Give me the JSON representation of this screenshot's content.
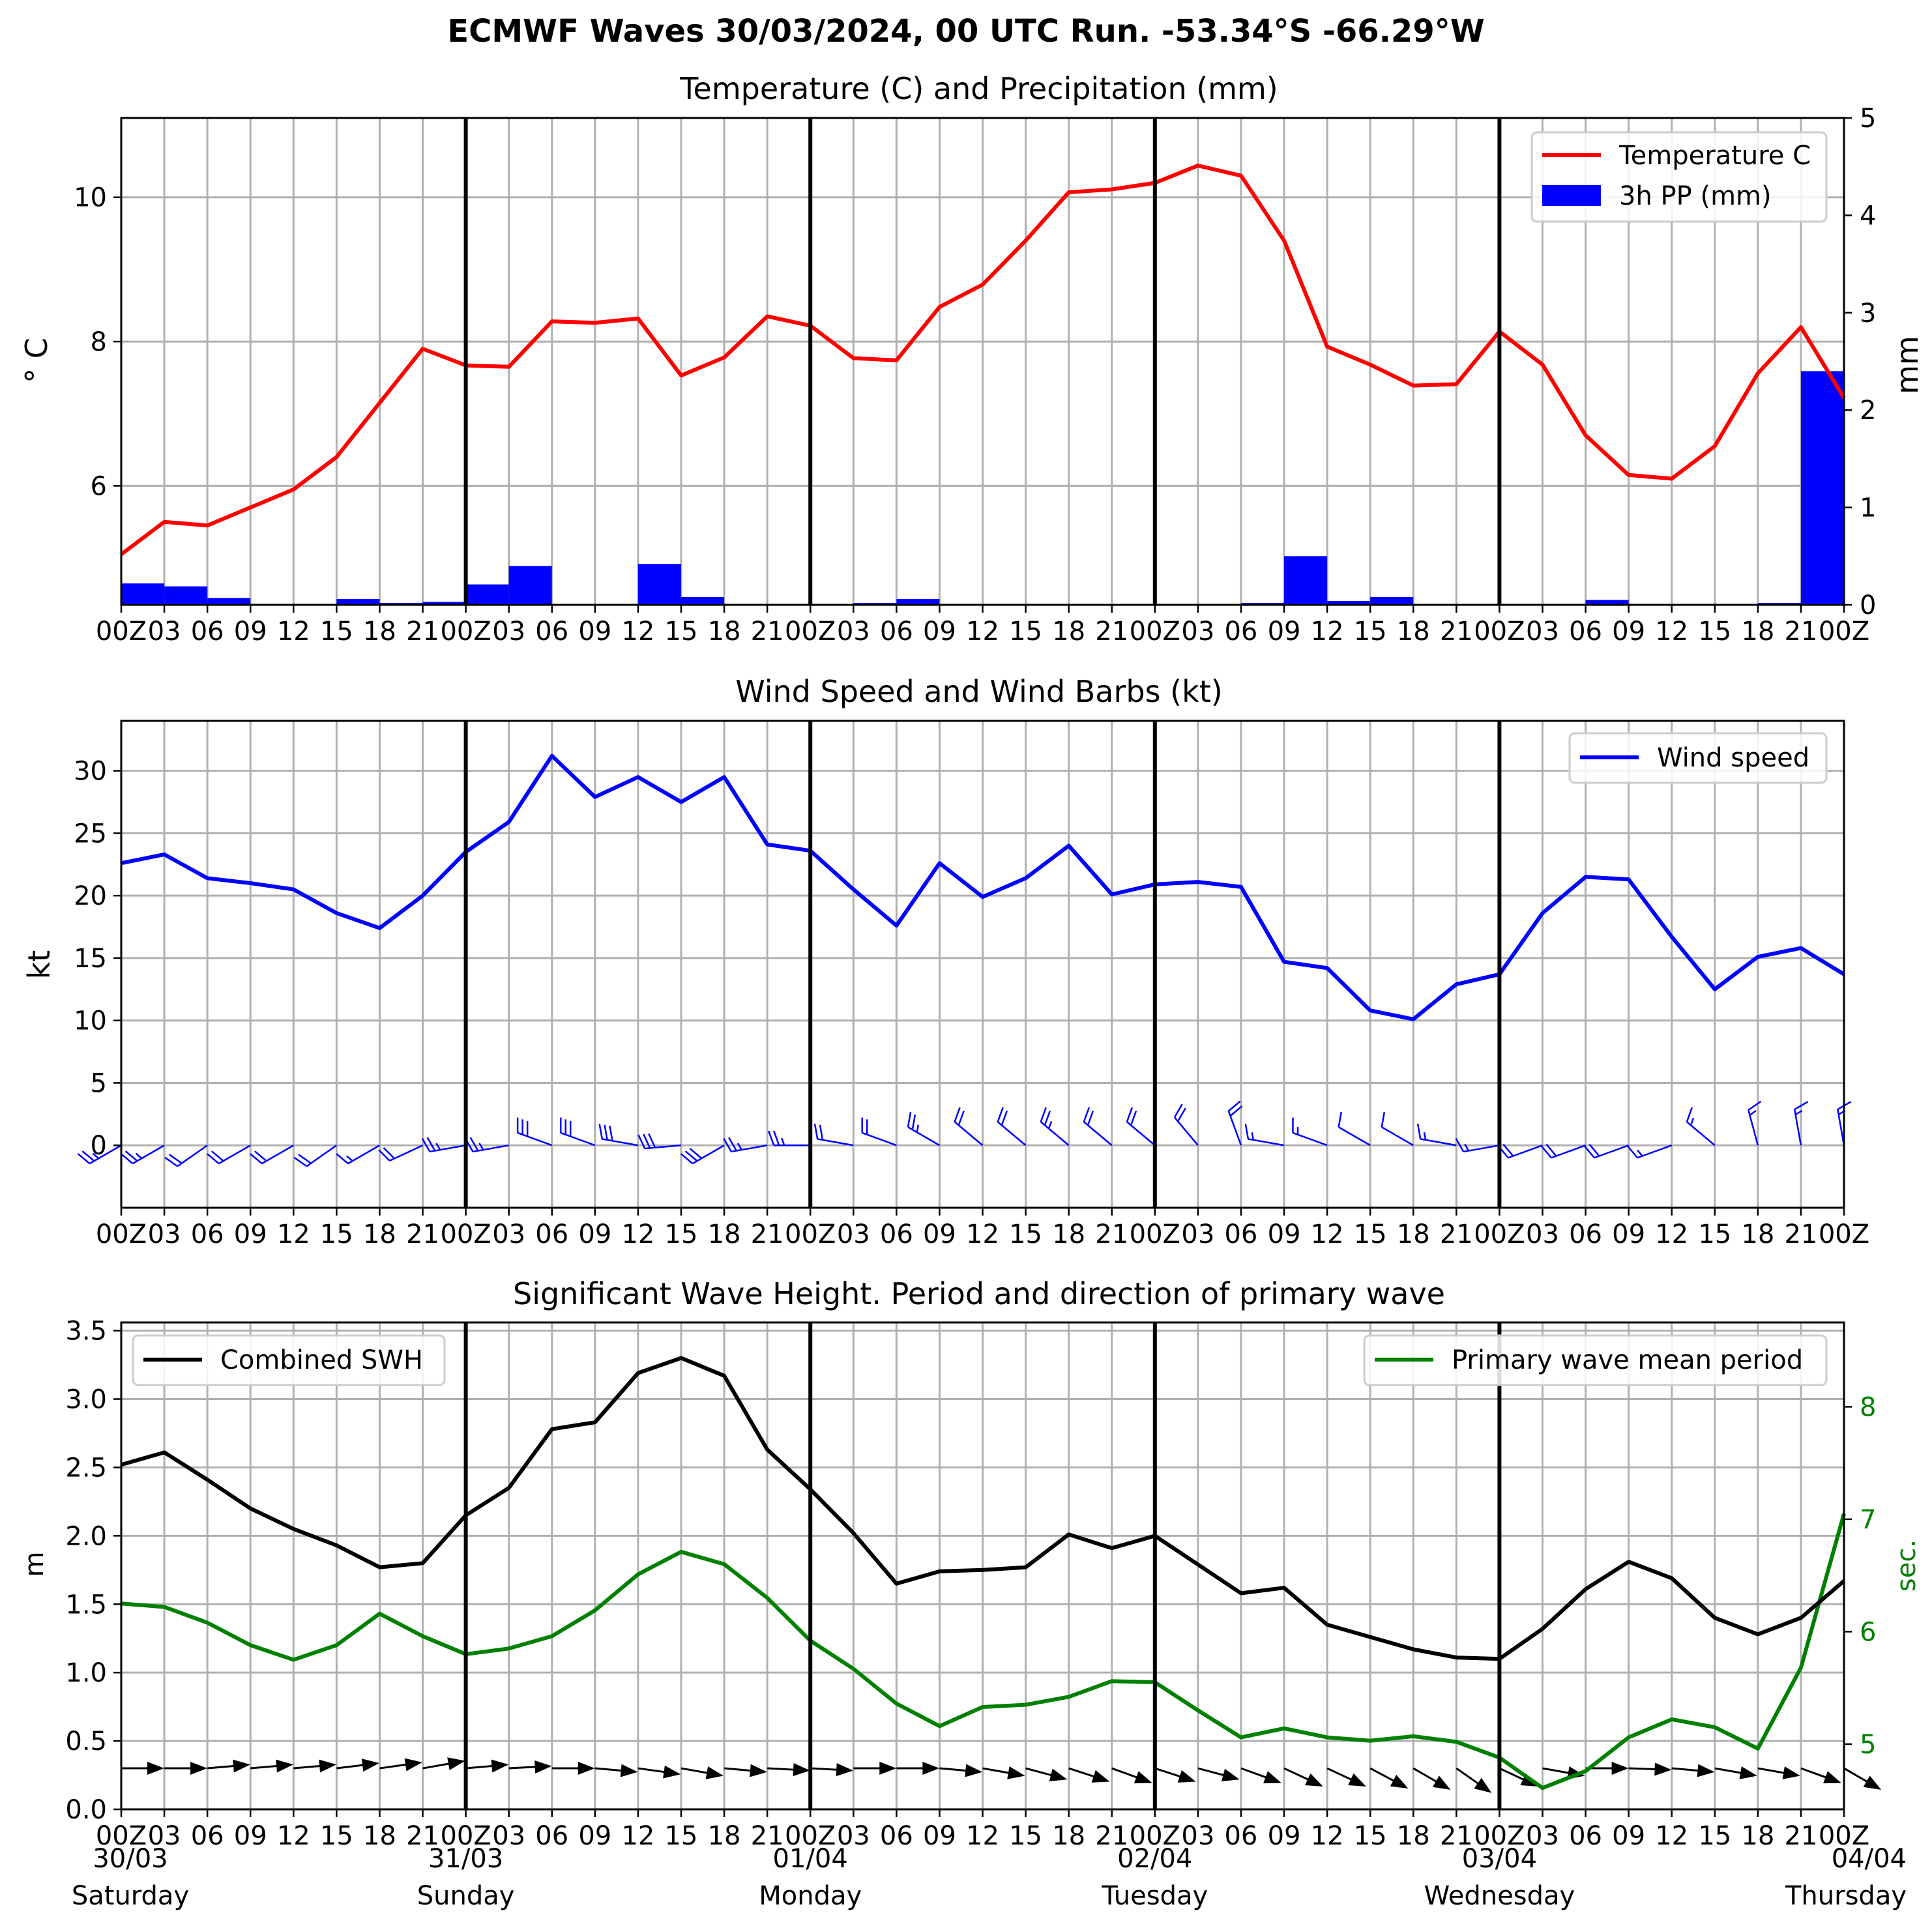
{
  "title": "ECMWF Waves 30/03/2024, 00 UTC Run. -53.34°S -66.29°W",
  "time_tick_labels": [
    "00Z",
    "03",
    "06",
    "09",
    "12",
    "15",
    "18",
    "21",
    "00Z",
    "03",
    "06",
    "09",
    "12",
    "15",
    "18",
    "21",
    "00Z",
    "03",
    "06",
    "09",
    "12",
    "15",
    "18",
    "21",
    "00Z",
    "03",
    "06",
    "09",
    "12",
    "15",
    "18",
    "21",
    "00Z",
    "03",
    "06",
    "09",
    "12",
    "15",
    "18",
    "21",
    "00Z"
  ],
  "date_labels": [
    "30/03",
    "31/03",
    "01/04",
    "02/04",
    "03/04",
    "04/04"
  ],
  "weekday_labels": [
    "Saturday",
    "Sunday",
    "Monday",
    "Tuesday",
    "Wednesday",
    "Thursday"
  ],
  "colors": {
    "temperature": "#ff0000",
    "precip": "#0000ff",
    "wind": "#0000ff",
    "swh": "#000000",
    "period": "#008000",
    "grid": "#b0b0b0"
  },
  "chart_data": [
    {
      "type": "line",
      "title": "Temperature (C) and Precipitation (mm)",
      "x_hours": [
        0,
        3,
        6,
        9,
        12,
        15,
        18,
        21,
        24,
        27,
        30,
        33,
        36,
        39,
        42,
        45,
        48,
        51,
        54,
        57,
        60,
        63,
        66,
        69,
        72,
        75,
        78,
        81,
        84,
        87,
        90,
        93,
        96,
        99,
        102,
        105,
        108,
        111,
        114,
        117,
        120
      ],
      "ylabel": "$^\\circ$C",
      "ylabel_display": "° C",
      "y_ticks": [
        6,
        8,
        10
      ],
      "ylim": [
        4.35,
        11.1
      ],
      "y2label": "mm",
      "y2_ticks": [
        0,
        1,
        2,
        3,
        4,
        5
      ],
      "y2lim": [
        0,
        5
      ],
      "legend_position": "upper-right",
      "series": [
        {
          "name": "Temperature C",
          "type": "line",
          "values": [
            5.05,
            5.5,
            5.45,
            5.7,
            5.95,
            6.4,
            7.15,
            7.9,
            7.67,
            7.65,
            8.28,
            8.26,
            8.32,
            7.53,
            7.78,
            8.35,
            8.22,
            7.77,
            7.74,
            8.48,
            8.79,
            9.4,
            10.07,
            10.11,
            10.2,
            10.44,
            10.3,
            9.4,
            7.93,
            7.68,
            7.39,
            7.41,
            8.14,
            7.68,
            6.7,
            6.15,
            6.1,
            6.55,
            7.56,
            8.2,
            7.22
          ]
        },
        {
          "name": "3h PP (mm)",
          "type": "bar",
          "values": [
            0.22,
            0.19,
            0.07,
            0,
            0,
            0.06,
            0.02,
            0.03,
            0.21,
            0.4,
            0,
            0,
            0.42,
            0.08,
            0,
            0,
            0,
            0.02,
            0.06,
            0,
            0,
            0,
            0,
            0,
            0,
            0,
            0.02,
            0.5,
            0.04,
            0.08,
            0,
            0,
            0,
            0,
            0.05,
            0,
            0,
            0,
            0.02,
            2.4
          ]
        }
      ]
    },
    {
      "type": "line",
      "title": "Wind Speed and Wind Barbs (kt)",
      "x_hours": [
        0,
        3,
        6,
        9,
        12,
        15,
        18,
        21,
        24,
        27,
        30,
        33,
        36,
        39,
        42,
        45,
        48,
        51,
        54,
        57,
        60,
        63,
        66,
        69,
        72,
        75,
        78,
        81,
        84,
        87,
        90,
        93,
        96,
        99,
        102,
        105,
        108,
        111,
        114,
        117,
        120
      ],
      "ylabel": "kt",
      "y_ticks": [
        0,
        5,
        10,
        15,
        20,
        25,
        30
      ],
      "ylim": [
        -5,
        34
      ],
      "legend_position": "upper-right",
      "series": [
        {
          "name": "Wind speed",
          "values": [
            22.6,
            23.3,
            21.4,
            21,
            20.5,
            18.6,
            17.4,
            20,
            23.5,
            25.9,
            31.2,
            27.9,
            29.5,
            27.5,
            29.5,
            24.1,
            23.6,
            20.5,
            17.6,
            22.6,
            19.9,
            21.4,
            24,
            20.1,
            20.9,
            21.1,
            20.7,
            14.7,
            14.2,
            10.8,
            10.1,
            12.9,
            13.7,
            18.6,
            21.5,
            21.3,
            16.7,
            12.5,
            15.1,
            15.8,
            13.7
          ]
        }
      ],
      "wind_barbs": {
        "note": "barbs drawn along y=0",
        "dirs_deg": [
          240,
          240,
          235,
          240,
          240,
          235,
          240,
          245,
          260,
          260,
          290,
          290,
          280,
          265,
          240,
          260,
          270,
          280,
          290,
          300,
          310,
          310,
          310,
          310,
          310,
          320,
          340,
          280,
          290,
          300,
          300,
          280,
          260,
          250,
          250,
          250,
          250,
          310,
          345,
          350,
          350
        ],
        "speeds_kt": [
          22.6,
          23.3,
          21.4,
          21,
          20.5,
          18.6,
          17.4,
          20,
          23.5,
          25.9,
          31.2,
          27.9,
          29.5,
          27.5,
          29.5,
          24.1,
          23.6,
          20.5,
          17.6,
          22.6,
          19.9,
          21.4,
          24,
          20.1,
          20.9,
          21.1,
          20.7,
          14.7,
          14.2,
          10.8,
          10.1,
          12.9,
          13.7,
          18.6,
          21.5,
          21.3,
          16.7,
          12.5,
          15.1,
          15.8,
          13.7
        ]
      }
    },
    {
      "type": "line",
      "title": "Significant Wave Height. Period and direction of primary wave",
      "x_hours": [
        0,
        3,
        6,
        9,
        12,
        15,
        18,
        21,
        24,
        27,
        30,
        33,
        36,
        39,
        42,
        45,
        48,
        51,
        54,
        57,
        60,
        63,
        66,
        69,
        72,
        75,
        78,
        81,
        84,
        87,
        90,
        93,
        96,
        99,
        102,
        105,
        108,
        111,
        114,
        117,
        120
      ],
      "ylabel": "m",
      "y_ticks": [
        0.0,
        0.5,
        1.0,
        1.5,
        2.0,
        2.5,
        3.0,
        3.5
      ],
      "ylim": [
        0,
        3.56
      ],
      "y2label": "sec.",
      "y2_ticks": [
        5,
        6,
        7,
        8
      ],
      "y2lim": [
        4.42,
        8.75
      ],
      "series": [
        {
          "name": "Combined SWH",
          "axis": "left",
          "legend_position": "upper-left",
          "values": [
            2.52,
            2.61,
            2.41,
            2.2,
            2.05,
            1.93,
            1.77,
            1.8,
            2.15,
            2.35,
            2.78,
            2.83,
            3.19,
            3.3,
            3.17,
            2.63,
            2.34,
            2.02,
            1.65,
            1.74,
            1.75,
            1.77,
            2.01,
            1.91,
            2.0,
            1.79,
            1.58,
            1.62,
            1.35,
            1.26,
            1.17,
            1.11,
            1.1,
            1.32,
            1.61,
            1.81,
            1.69,
            1.4,
            1.28,
            1.4,
            1.67
          ]
        },
        {
          "name": "Primary wave mean period",
          "axis": "right",
          "legend_position": "upper-right",
          "values": [
            6.25,
            6.22,
            6.08,
            5.88,
            5.75,
            5.88,
            6.16,
            5.96,
            5.8,
            5.85,
            5.96,
            6.19,
            6.51,
            6.71,
            6.6,
            6.3,
            5.92,
            5.67,
            5.36,
            5.16,
            5.33,
            5.35,
            5.42,
            5.56,
            5.55,
            5.3,
            5.06,
            5.14,
            5.06,
            5.03,
            5.07,
            5.02,
            4.88,
            4.61,
            4.76,
            5.06,
            5.22,
            5.15,
            4.96,
            5.68,
            7.05
          ]
        }
      ],
      "wave_dir_arrows": {
        "note": "black arrows drawn along y≈0.3",
        "dirs_to_deg": [
          90,
          90,
          85,
          85,
          85,
          83,
          82,
          80,
          85,
          87,
          90,
          95,
          98,
          100,
          95,
          93,
          93,
          90,
          90,
          95,
          100,
          105,
          108,
          110,
          108,
          105,
          110,
          115,
          115,
          118,
          120,
          125,
          115,
          100,
          90,
          92,
          95,
          100,
          100,
          110,
          120
        ]
      }
    }
  ]
}
